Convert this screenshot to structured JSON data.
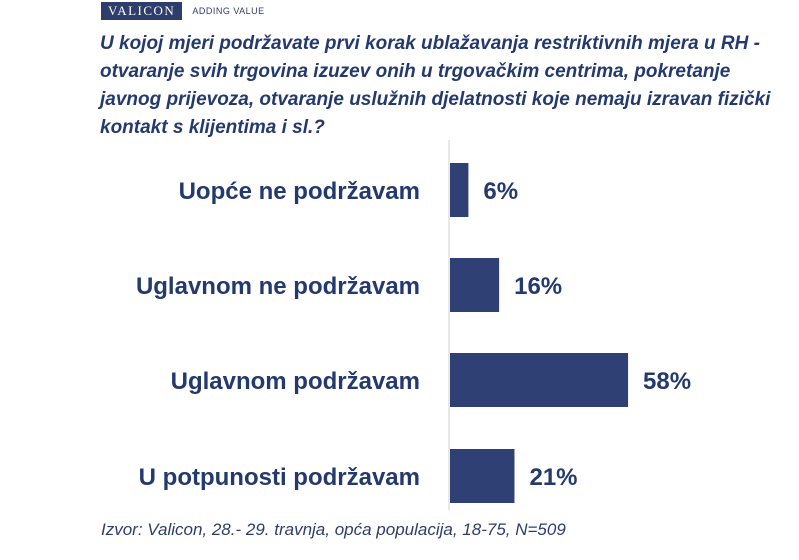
{
  "brand": {
    "name": "VALICON",
    "tagline": "ADDING VALUE"
  },
  "question": "U kojoj mjeri podržavate prvi korak ublažavanja restriktivnih mjera u RH - otvaranje svih trgovina izuzev onih u trgovačkim centrima, pokretanje javnog prijevoza, otvaranje uslužnih djelatnosti koje nemaju izravan fizički kontakt s klijentima i sl.?",
  "source": "Izvor: Valicon, 28.- 29. travnja, opća populacija, 18-75, N=509",
  "chart_data": {
    "type": "bar",
    "orientation": "horizontal",
    "categories": [
      "Uopće ne podržavam",
      "Uglavnom ne podržavam",
      "Uglavnom podržavam",
      "U potpunosti podržavam"
    ],
    "values": [
      6,
      16,
      58,
      21
    ],
    "value_labels": [
      "6%",
      "16%",
      "58%",
      "21%"
    ],
    "title": "",
    "xlabel": "",
    "ylabel": "",
    "xlim": [
      0,
      100
    ],
    "grid": false,
    "bar_color": "#2e4074",
    "label_color": "#243a6e"
  }
}
